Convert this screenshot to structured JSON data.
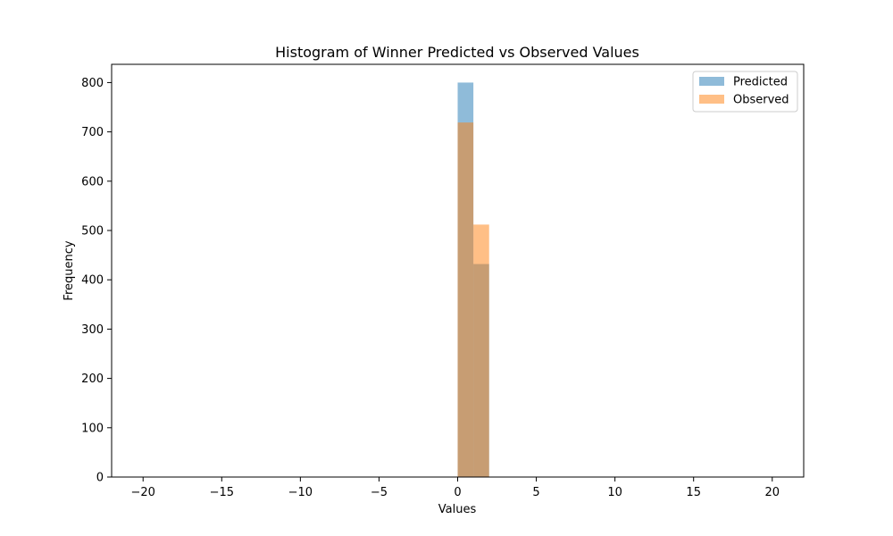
{
  "chart_data": {
    "type": "histogram",
    "title": "Histogram of Winner Predicted vs Observed Values",
    "xlabel": "Values",
    "ylabel": "Frequency",
    "xlim": [
      -22,
      22
    ],
    "ylim": [
      0,
      837
    ],
    "x_ticks": [
      "−20",
      "−15",
      "−10",
      "−5",
      "0",
      "5",
      "10",
      "15",
      "20"
    ],
    "y_ticks": [
      "0",
      "100",
      "200",
      "300",
      "400",
      "500",
      "600",
      "700",
      "800"
    ],
    "bin_width": 1,
    "grid": false,
    "legend_position": "top-right",
    "series": [
      {
        "name": "Predicted",
        "color": "#1f77b4",
        "alpha": 0.5,
        "bins": [
          {
            "x0": 0,
            "x1": 1,
            "count": 800
          },
          {
            "x0": 1,
            "x1": 2,
            "count": 432
          }
        ]
      },
      {
        "name": "Observed",
        "color": "#ff7f0e",
        "alpha": 0.5,
        "bins": [
          {
            "x0": 0,
            "x1": 1,
            "count": 719
          },
          {
            "x0": 1,
            "x1": 2,
            "count": 512
          }
        ]
      }
    ]
  }
}
